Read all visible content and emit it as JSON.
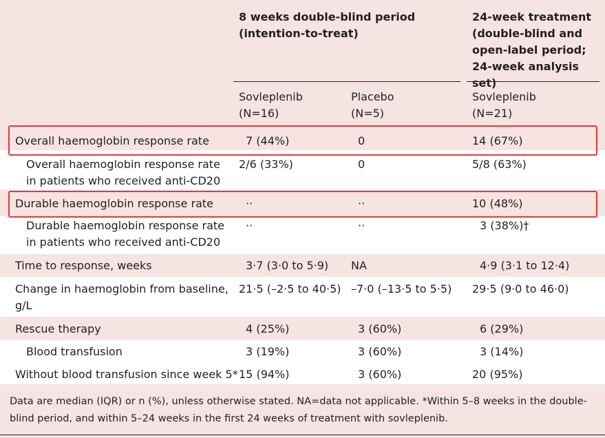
{
  "header": {
    "group_doubleblind": "8 weeks double-blind period (intention-to-treat)",
    "group_24week": [
      "24-week treatment",
      "(double-blind and",
      "open-label period;",
      "24-week analysis set)"
    ],
    "col_sov": [
      "Sovleplenib",
      "(N=16)"
    ],
    "col_placebo": [
      "Placebo",
      "(N=5)"
    ],
    "col_sov24": [
      "Sovleplenib",
      "(N=21)"
    ]
  },
  "rows": [
    {
      "label": "Overall haemoglobin response rate",
      "sov": "7 (44%)",
      "placebo": "0",
      "sov24": "14 (67%)"
    },
    {
      "label": "Overall haemoglobin response rate in patients who received anti-CD20",
      "sov": "2/6 (33%)",
      "placebo": "0",
      "sov24": "5/8 (63%)"
    },
    {
      "label": "Durable haemoglobin response rate",
      "sov": "··",
      "placebo": "··",
      "sov24": "10 (48%)"
    },
    {
      "label": "Durable haemoglobin response rate in patients who received anti-CD20",
      "sov": "··",
      "placebo": "··",
      "sov24": "3 (38%)†"
    },
    {
      "label": "Time to response, weeks",
      "sov": "3·7 (3·0 to 5·9)",
      "placebo": "NA",
      "sov24": "4·9 (3·1 to 12·4)"
    },
    {
      "label": "Change in haemoglobin from baseline, g/L",
      "sov": "21·5 (–2·5 to 40·5)",
      "placebo": "–7·0 (–13·5 to 5·5)",
      "sov24": "29·5 (9·0 to 46·0)"
    },
    {
      "label": "Rescue therapy",
      "sov": "4 (25%)",
      "placebo": "3 (60%)",
      "sov24": "6 (29%)"
    },
    {
      "label": "Blood transfusion",
      "sov": "3 (19%)",
      "placebo": "3 (60%)",
      "sov24": "3 (14%)"
    },
    {
      "label": "Without blood transfusion since week 5*",
      "sov": "15 (94%)",
      "placebo": "3 (60%)",
      "sov24": "20 (95%)"
    }
  ],
  "footnote": "Data are median (IQR) or n (%), unless otherwise stated. NA=data not applicable. *Within 5–8 weeks in the double-blind period, and within 5–24 weeks in the first 24 weeks of treatment with sovleplenib.",
  "colors": {
    "background": "#f6e4e2",
    "row_white": "#ffffff",
    "highlight": "#e53935"
  }
}
